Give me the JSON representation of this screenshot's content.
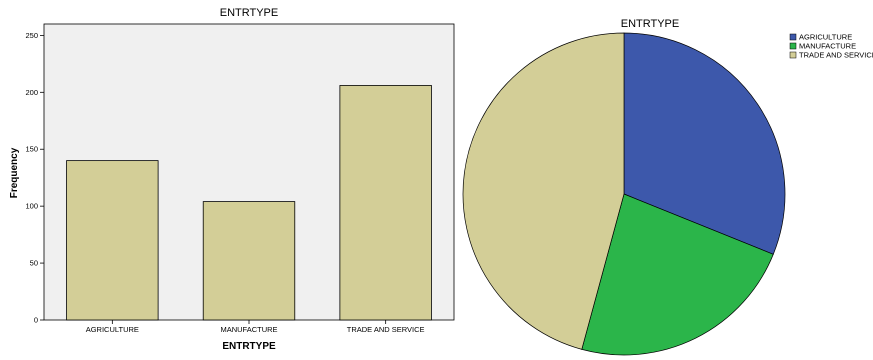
{
  "chart_data": [
    {
      "type": "bar",
      "title": "ENTRTYPE",
      "xlabel": "ENTRTYPE",
      "ylabel": "Frequency",
      "categories": [
        "AGRICULTURE",
        "MANUFACTURE",
        "TRADE AND SERVICE"
      ],
      "values": [
        140,
        104,
        206
      ],
      "ylim": [
        0,
        260
      ],
      "yticks": [
        0,
        50,
        100,
        150,
        200,
        250
      ],
      "bar_color": "#d3ce97",
      "plot_background": "#f0f0f0",
      "grid": false,
      "legend": "none"
    },
    {
      "type": "pie",
      "title": "ENTRTYPE",
      "categories": [
        "AGRICULTURE",
        "MANUFACTURE",
        "TRADE AND SERVICE"
      ],
      "values": [
        140,
        104,
        206
      ],
      "colors": [
        "#3d58ab",
        "#2bb54a",
        "#d3ce97"
      ],
      "legend": "top-right"
    }
  ]
}
